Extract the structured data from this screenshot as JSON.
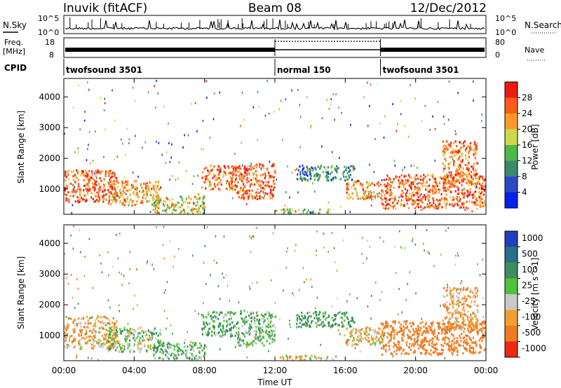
{
  "header": {
    "station": "Inuvik (fitACF)",
    "beam": "Beam 08",
    "date": "12/Dec/2012"
  },
  "noise_panel": {
    "left_label": "N.Sky",
    "right_label": "N.Search",
    "left_ticks": [
      "10^5",
      "10^0"
    ],
    "right_ticks": [
      "10^5",
      "10^0"
    ]
  },
  "freq_panel": {
    "left_label_top": "Freq.",
    "left_label_bottom": "[MHz]",
    "right_label": "Nave",
    "left_ticks": [
      "18",
      "8"
    ],
    "right_ticks": [
      "80",
      "0"
    ]
  },
  "cpid_panel": {
    "label": "CPID",
    "segments": [
      {
        "label": "twofsound 3501",
        "start_hour": 0,
        "end_hour": 12
      },
      {
        "label": "normal 150",
        "start_hour": 12,
        "end_hour": 18
      },
      {
        "label": "twofsound 3501",
        "start_hour": 18,
        "end_hour": 24
      }
    ]
  },
  "x_axis": {
    "label": "Time UT",
    "ticks": [
      "00:00",
      "04:00",
      "08:00",
      "12:00",
      "16:00",
      "20:00",
      "00:00"
    ]
  },
  "y_axis": {
    "label": "Slant Range [km]",
    "ticks": [
      "1000",
      "2000",
      "3000",
      "4000"
    ]
  },
  "power_scale": {
    "label": "Power [dB]",
    "ticks": [
      "4",
      "8",
      "12",
      "16",
      "20",
      "24",
      "28"
    ],
    "colors": [
      "#0022ee",
      "#2b48c8",
      "#3b8a6a",
      "#4fb84a",
      "#cfd84a",
      "#ff9a2a",
      "#ff5a1a",
      "#ee1a10"
    ]
  },
  "velocity_scale": {
    "label": "Velocity [m s^-1]",
    "ticks": [
      "1000",
      "500",
      "100",
      "25",
      "-25",
      "-100",
      "-500",
      "-1000"
    ],
    "colors": [
      "#2040b8",
      "#2a6e8a",
      "#3c8e5a",
      "#52c040",
      "#c8c8c8",
      "#f0a030",
      "#f07a20",
      "#ee2a10"
    ]
  },
  "chart_data": {
    "type": "heatmap",
    "panels": [
      "Power [dB]",
      "Velocity [m s^-1]"
    ],
    "xlabel": "Time UT",
    "ylabel": "Slant Range [km]",
    "xlim_hours": [
      0,
      24
    ],
    "ylim_km": [
      180,
      4600
    ],
    "regions": [
      {
        "t0": 0.0,
        "t1": 3.0,
        "r0": 600,
        "r1": 1650,
        "power": 26,
        "velocity": -60
      },
      {
        "t0": 2.5,
        "t1": 5.5,
        "r0": 500,
        "r1": 1300,
        "power": 22,
        "velocity": 40
      },
      {
        "t0": 5.0,
        "t1": 8.0,
        "r0": 250,
        "r1": 800,
        "power": 18,
        "velocity": 90
      },
      {
        "t0": 7.8,
        "t1": 9.8,
        "r0": 1000,
        "r1": 1800,
        "power": 24,
        "velocity": 110
      },
      {
        "t0": 9.8,
        "t1": 12.0,
        "r0": 700,
        "r1": 1850,
        "power": 26,
        "velocity": 80
      },
      {
        "t0": 12.0,
        "t1": 15.0,
        "r0": 200,
        "r1": 380,
        "power": 14,
        "velocity": -30
      },
      {
        "t0": 13.2,
        "t1": 16.5,
        "r0": 1300,
        "r1": 1800,
        "power": 10,
        "velocity": 150
      },
      {
        "t0": 16.0,
        "t1": 18.0,
        "r0": 700,
        "r1": 1300,
        "power": 22,
        "velocity": -40
      },
      {
        "t0": 18.0,
        "t1": 24.0,
        "r0": 400,
        "r1": 1500,
        "power": 26,
        "velocity": -300
      },
      {
        "t0": 21.5,
        "t1": 23.5,
        "r0": 1200,
        "r1": 2600,
        "power": 24,
        "velocity": -80
      }
    ]
  }
}
